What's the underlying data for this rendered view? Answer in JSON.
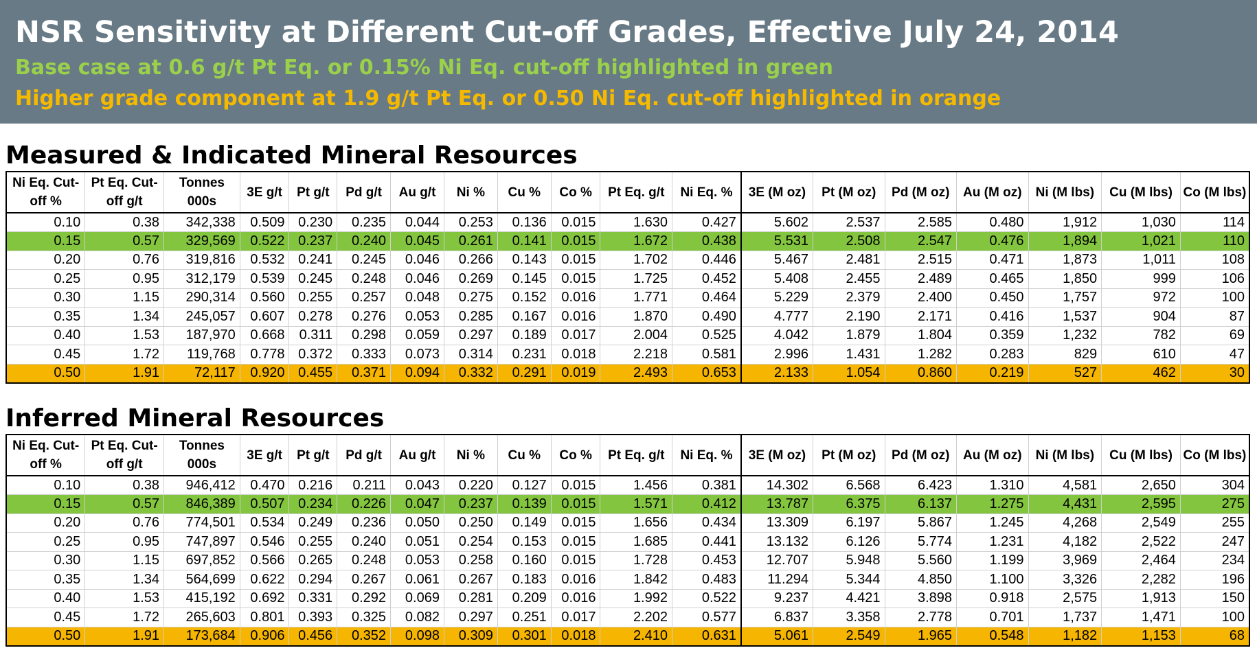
{
  "header": {
    "title": "NSR Sensitivity at Different Cut-off Grades, Effective July 24, 2014",
    "subtitle_green": "Base case at 0.6 g/t Pt Eq. or 0.15% Ni Eq. cut-off highlighted in green",
    "subtitle_orange": "Higher grade component at 1.9 g/t Pt Eq. or 0.50 Ni Eq. cut-off highlighted in orange"
  },
  "colors": {
    "banner": "#677a85",
    "base_case": "#84c53f",
    "higher_grade": "#f6b500",
    "green_text": "#9bd04c",
    "orange_text": "#f5b900"
  },
  "columns": [
    [
      "Ni Eq. Cut-",
      "off %"
    ],
    [
      "Pt Eq. Cut-",
      "off g/t"
    ],
    [
      "Tonnes",
      "000s"
    ],
    [
      "3E g/t"
    ],
    [
      "Pt g/t"
    ],
    [
      "Pd g/t"
    ],
    [
      "Au g/t"
    ],
    [
      "Ni %"
    ],
    [
      "Cu  %"
    ],
    [
      "Co %"
    ],
    [
      "Pt Eq. g/t"
    ],
    [
      "Ni Eq. %"
    ],
    [
      "3E (M oz)"
    ],
    [
      "Pt (M oz)"
    ],
    [
      "Pd (M oz)"
    ],
    [
      "Au (M oz)"
    ],
    [
      "Ni (M lbs)"
    ],
    [
      "Cu (M lbs)"
    ],
    [
      "Co (M lbs)"
    ]
  ],
  "tables": [
    {
      "title": "Measured & Indicated Mineral Resources",
      "rows": [
        [
          "0.10",
          "0.38",
          "342,338",
          "0.509",
          "0.230",
          "0.235",
          "0.044",
          "0.253",
          "0.136",
          "0.015",
          "1.630",
          "0.427",
          "5.602",
          "2.537",
          "2.585",
          "0.480",
          "1,912",
          "1,030",
          "114"
        ],
        [
          "0.15",
          "0.57",
          "329,569",
          "0.522",
          "0.237",
          "0.240",
          "0.045",
          "0.261",
          "0.141",
          "0.015",
          "1.672",
          "0.438",
          "5.531",
          "2.508",
          "2.547",
          "0.476",
          "1,894",
          "1,021",
          "110"
        ],
        [
          "0.20",
          "0.76",
          "319,816",
          "0.532",
          "0.241",
          "0.245",
          "0.046",
          "0.266",
          "0.143",
          "0.015",
          "1.702",
          "0.446",
          "5.467",
          "2.481",
          "2.515",
          "0.471",
          "1,873",
          "1,011",
          "108"
        ],
        [
          "0.25",
          "0.95",
          "312,179",
          "0.539",
          "0.245",
          "0.248",
          "0.046",
          "0.269",
          "0.145",
          "0.015",
          "1.725",
          "0.452",
          "5.408",
          "2.455",
          "2.489",
          "0.465",
          "1,850",
          "999",
          "106"
        ],
        [
          "0.30",
          "1.15",
          "290,314",
          "0.560",
          "0.255",
          "0.257",
          "0.048",
          "0.275",
          "0.152",
          "0.016",
          "1.771",
          "0.464",
          "5.229",
          "2.379",
          "2.400",
          "0.450",
          "1,757",
          "972",
          "100"
        ],
        [
          "0.35",
          "1.34",
          "245,057",
          "0.607",
          "0.278",
          "0.276",
          "0.053",
          "0.285",
          "0.167",
          "0.016",
          "1.870",
          "0.490",
          "4.777",
          "2.190",
          "2.171",
          "0.416",
          "1,537",
          "904",
          "87"
        ],
        [
          "0.40",
          "1.53",
          "187,970",
          "0.668",
          "0.311",
          "0.298",
          "0.059",
          "0.297",
          "0.189",
          "0.017",
          "2.004",
          "0.525",
          "4.042",
          "1.879",
          "1.804",
          "0.359",
          "1,232",
          "782",
          "69"
        ],
        [
          "0.45",
          "1.72",
          "119,768",
          "0.778",
          "0.372",
          "0.333",
          "0.073",
          "0.314",
          "0.231",
          "0.018",
          "2.218",
          "0.581",
          "2.996",
          "1.431",
          "1.282",
          "0.283",
          "829",
          "610",
          "47"
        ],
        [
          "0.50",
          "1.91",
          "72,117",
          "0.920",
          "0.455",
          "0.371",
          "0.094",
          "0.332",
          "0.291",
          "0.019",
          "2.493",
          "0.653",
          "2.133",
          "1.054",
          "0.860",
          "0.219",
          "527",
          "462",
          "30"
        ]
      ]
    },
    {
      "title": "Inferred Mineral Resources",
      "rows": [
        [
          "0.10",
          "0.38",
          "946,412",
          "0.470",
          "0.216",
          "0.211",
          "0.043",
          "0.220",
          "0.127",
          "0.015",
          "1.456",
          "0.381",
          "14.302",
          "6.568",
          "6.423",
          "1.310",
          "4,581",
          "2,650",
          "304"
        ],
        [
          "0.15",
          "0.57",
          "846,389",
          "0.507",
          "0.234",
          "0.226",
          "0.047",
          "0.237",
          "0.139",
          "0.015",
          "1.571",
          "0.412",
          "13.787",
          "6.375",
          "6.137",
          "1.275",
          "4,431",
          "2,595",
          "275"
        ],
        [
          "0.20",
          "0.76",
          "774,501",
          "0.534",
          "0.249",
          "0.236",
          "0.050",
          "0.250",
          "0.149",
          "0.015",
          "1.656",
          "0.434",
          "13.309",
          "6.197",
          "5.867",
          "1.245",
          "4,268",
          "2,549",
          "255"
        ],
        [
          "0.25",
          "0.95",
          "747,897",
          "0.546",
          "0.255",
          "0.240",
          "0.051",
          "0.254",
          "0.153",
          "0.015",
          "1.685",
          "0.441",
          "13.132",
          "6.126",
          "5.774",
          "1.231",
          "4,182",
          "2,522",
          "247"
        ],
        [
          "0.30",
          "1.15",
          "697,852",
          "0.566",
          "0.265",
          "0.248",
          "0.053",
          "0.258",
          "0.160",
          "0.015",
          "1.728",
          "0.453",
          "12.707",
          "5.948",
          "5.560",
          "1.199",
          "3,969",
          "2,464",
          "234"
        ],
        [
          "0.35",
          "1.34",
          "564,699",
          "0.622",
          "0.294",
          "0.267",
          "0.061",
          "0.267",
          "0.183",
          "0.016",
          "1.842",
          "0.483",
          "11.294",
          "5.344",
          "4.850",
          "1.100",
          "3,326",
          "2,282",
          "196"
        ],
        [
          "0.40",
          "1.53",
          "415,192",
          "0.692",
          "0.331",
          "0.292",
          "0.069",
          "0.281",
          "0.209",
          "0.016",
          "1.992",
          "0.522",
          "9.237",
          "4.421",
          "3.898",
          "0.918",
          "2,575",
          "1,913",
          "150"
        ],
        [
          "0.45",
          "1.72",
          "265,603",
          "0.801",
          "0.393",
          "0.325",
          "0.082",
          "0.297",
          "0.251",
          "0.017",
          "2.202",
          "0.577",
          "6.837",
          "3.358",
          "2.778",
          "0.701",
          "1,737",
          "1,471",
          "100"
        ],
        [
          "0.50",
          "1.91",
          "173,684",
          "0.906",
          "0.456",
          "0.352",
          "0.098",
          "0.309",
          "0.301",
          "0.018",
          "2.410",
          "0.631",
          "5.061",
          "2.549",
          "1.965",
          "0.548",
          "1,182",
          "1,153",
          "68"
        ]
      ]
    }
  ]
}
